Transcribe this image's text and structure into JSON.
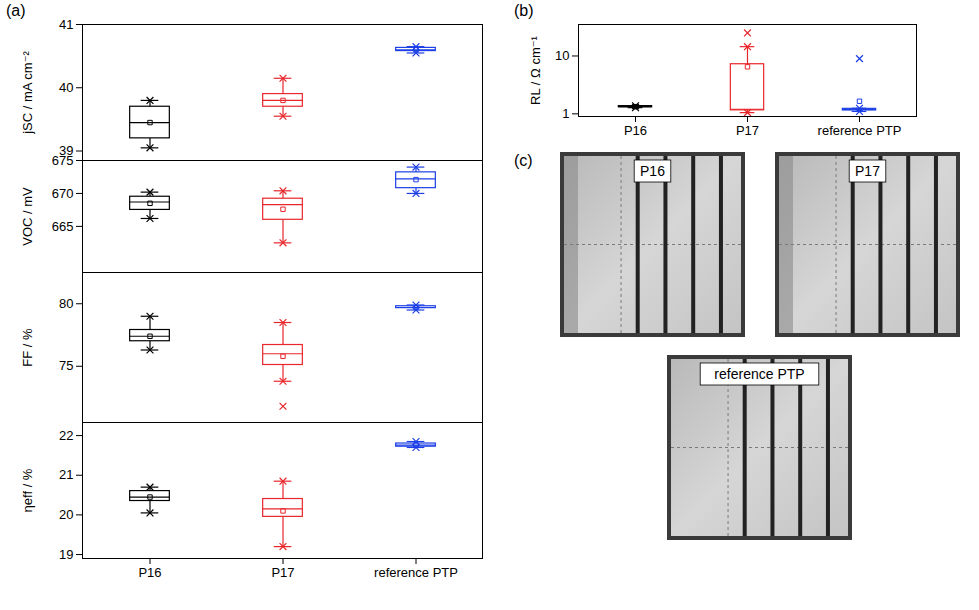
{
  "panel_labels": [
    "(a)",
    "(b)",
    "(c)"
  ],
  "chart_data": [
    {
      "type": "box",
      "y_label": "jSC / mA cm⁻²",
      "categories": [
        "P16",
        "P17",
        "reference PTP"
      ],
      "colors": [
        "#000000",
        "#e8262b",
        "#1c3fe6"
      ],
      "ylim": [
        38.85,
        41
      ],
      "yticks": [
        39,
        40,
        41
      ],
      "tick_labels": "y",
      "boxes": [
        {
          "whisker": [
            39.05,
            39.8
          ],
          "box": [
            39.2,
            39.7
          ],
          "median": 39.45,
          "mean": 39.45,
          "outliers": []
        },
        {
          "whisker": [
            39.55,
            40.15
          ],
          "box": [
            39.7,
            39.9
          ],
          "median": 39.8,
          "mean": 39.8,
          "outliers": []
        },
        {
          "whisker": [
            40.55,
            40.65
          ],
          "box": [
            40.58,
            40.63
          ],
          "median": 40.6,
          "mean": 40.6,
          "outliers": []
        }
      ]
    },
    {
      "type": "box",
      "y_label": "VOC / mV",
      "categories": [
        "P16",
        "P17",
        "reference PTP"
      ],
      "colors": [
        "#000000",
        "#e8262b",
        "#1c3fe6"
      ],
      "ylim": [
        658,
        675
      ],
      "yticks": [
        665,
        670,
        675
      ],
      "tick_labels": "y",
      "boxes": [
        {
          "whisker": [
            666.2,
            670.2
          ],
          "box": [
            667.5,
            669.5
          ],
          "median": 668.7,
          "mean": 668.5,
          "outliers": []
        },
        {
          "whisker": [
            662.5,
            670.4
          ],
          "box": [
            666,
            669.2
          ],
          "median": 668.3,
          "mean": 667.6,
          "outliers": []
        },
        {
          "whisker": [
            670,
            674
          ],
          "box": [
            670.8,
            673.2
          ],
          "median": 672.2,
          "mean": 672.1,
          "outliers": []
        }
      ]
    },
    {
      "type": "box",
      "y_label": "FF / %",
      "categories": [
        "P16",
        "P17",
        "reference PTP"
      ],
      "colors": [
        "#000000",
        "#e8262b",
        "#1c3fe6"
      ],
      "ylim": [
        70.5,
        82.5
      ],
      "yticks": [
        75,
        80
      ],
      "tick_labels": "y",
      "boxes": [
        {
          "whisker": [
            76.3,
            79
          ],
          "box": [
            77,
            77.9
          ],
          "median": 77.4,
          "mean": 77.4,
          "outliers": []
        },
        {
          "whisker": [
            73.8,
            78.5
          ],
          "box": [
            75.1,
            76.7
          ],
          "median": 76,
          "mean": 75.8,
          "outliers": [
            71.8
          ]
        },
        {
          "whisker": [
            79.5,
            79.9
          ],
          "box": [
            79.65,
            79.8
          ],
          "median": 79.7,
          "mean": 79.7,
          "outliers": []
        }
      ]
    },
    {
      "type": "box",
      "y_label": "ηeff / %",
      "categories": [
        "P16",
        "P17",
        "reference PTP"
      ],
      "colors": [
        "#000000",
        "#e8262b",
        "#1c3fe6"
      ],
      "ylim": [
        18.9,
        22.33
      ],
      "yticks": [
        19,
        20,
        21,
        22
      ],
      "boxes": [
        {
          "whisker": [
            20.05,
            20.7
          ],
          "box": [
            20.35,
            20.6
          ],
          "median": 20.45,
          "mean": 20.45,
          "outliers": []
        },
        {
          "whisker": [
            19.2,
            20.85
          ],
          "box": [
            19.95,
            20.4
          ],
          "median": 20.15,
          "mean": 20.1,
          "outliers": []
        },
        {
          "whisker": [
            21.7,
            21.85
          ],
          "box": [
            21.72,
            21.8
          ],
          "median": 21.76,
          "mean": 21.76,
          "outliers": []
        }
      ]
    },
    {
      "type": "box",
      "y_label": "RL / Ω cm⁻¹",
      "categories": [
        "P16",
        "P17",
        "reference PTP"
      ],
      "colors": [
        "#000000",
        "#e8262b",
        "#1c3fe6"
      ],
      "log": "y",
      "ylim": [
        0.9,
        35
      ],
      "yticks": [
        1,
        10
      ],
      "boxes": [
        {
          "whisker": [
            1.28,
            1.38
          ],
          "box": [
            1.3,
            1.36
          ],
          "median": 1.33,
          "mean": 1.33,
          "outliers": []
        },
        {
          "whisker": [
            1.05,
            14.5
          ],
          "box": [
            1.15,
            7.2
          ],
          "median": 1.2,
          "mean": 6.5,
          "outliers": [
            25
          ]
        },
        {
          "whisker": [
            1.1,
            1.25
          ],
          "box": [
            1.15,
            1.22
          ],
          "median": 1.18,
          "mean": 1.65,
          "outliers": [
            9
          ]
        }
      ]
    }
  ],
  "images": {
    "labels": [
      "P16",
      "P17",
      "reference PTP"
    ]
  }
}
